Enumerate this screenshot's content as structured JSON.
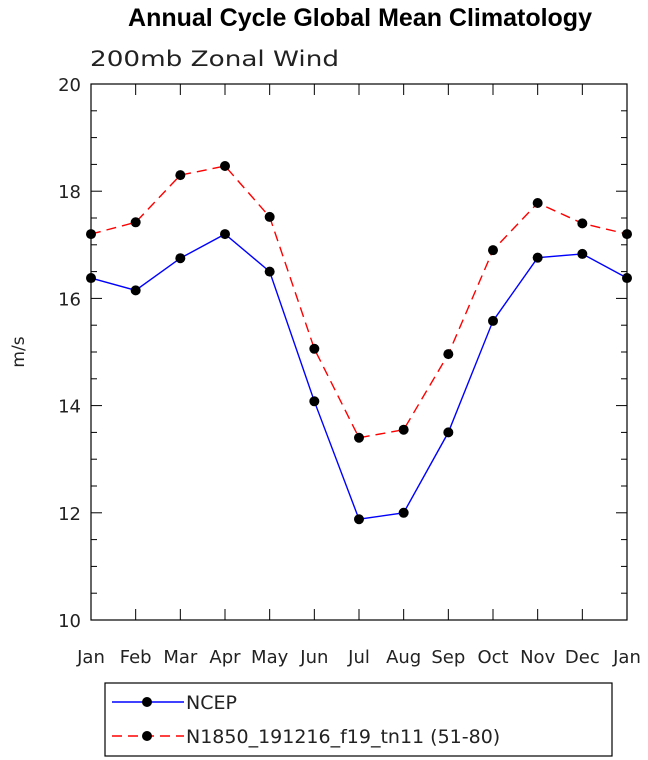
{
  "chart_data": {
    "type": "line",
    "title": "Annual Cycle Global Mean Climatology",
    "subtitle": "200mb Zonal Wind",
    "xlabel": "",
    "ylabel": "m/s",
    "categories": [
      "Jan",
      "Feb",
      "Mar",
      "Apr",
      "May",
      "Jun",
      "Jul",
      "Aug",
      "Sep",
      "Oct",
      "Nov",
      "Dec",
      "Jan"
    ],
    "ylim": [
      10,
      20
    ],
    "yticks": [
      10,
      12,
      14,
      16,
      18,
      20
    ],
    "grid": false,
    "legend_position": "bottom",
    "series": [
      {
        "name": "NCEP",
        "color": "#0000ff",
        "style": "solid",
        "marker": "filled-circle",
        "values": [
          16.38,
          16.15,
          16.75,
          17.2,
          16.5,
          14.08,
          11.88,
          12.0,
          13.5,
          15.58,
          16.76,
          16.83,
          16.38
        ]
      },
      {
        "name": "N1850_191216_f19_tn11 (51-80)",
        "color": "#ff0000",
        "style": "dashed",
        "marker": "filled-circle",
        "values": [
          17.2,
          17.42,
          18.3,
          18.47,
          17.52,
          15.06,
          13.4,
          13.55,
          14.96,
          16.9,
          17.78,
          17.4,
          17.2
        ]
      }
    ]
  }
}
